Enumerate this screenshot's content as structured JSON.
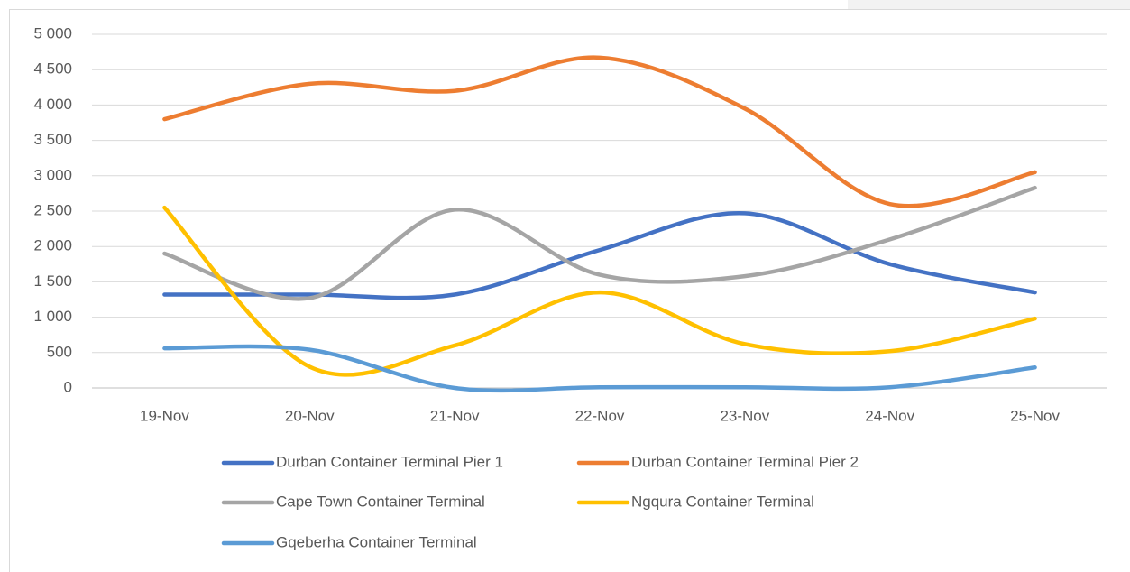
{
  "chart_data": {
    "type": "line",
    "smooth": true,
    "categories": [
      "19-Nov",
      "20-Nov",
      "21-Nov",
      "22-Nov",
      "23-Nov",
      "24-Nov",
      "25-Nov"
    ],
    "series": [
      {
        "name": "Durban Container Terminal Pier 1",
        "color": "#4472c4",
        "values": [
          1320,
          1320,
          1320,
          1950,
          2470,
          1750,
          1350
        ]
      },
      {
        "name": "Durban Container Terminal Pier 2",
        "color": "#ed7d31",
        "values": [
          3800,
          4300,
          4200,
          4670,
          3950,
          2600,
          3050
        ]
      },
      {
        "name": "Cape Town Container Terminal",
        "color": "#a5a5a5",
        "values": [
          1900,
          1270,
          2520,
          1600,
          1580,
          2100,
          2830
        ]
      },
      {
        "name": "Ngqura Container Terminal",
        "color": "#ffc000",
        "values": [
          2550,
          300,
          600,
          1350,
          620,
          520,
          980
        ]
      },
      {
        "name": "Gqeberha Container Terminal",
        "color": "#5b9bd5",
        "values": [
          560,
          540,
          0,
          10,
          10,
          10,
          290
        ]
      }
    ],
    "ylim": [
      0,
      5000
    ],
    "yticks": [
      0,
      500,
      {
        "value": 1000,
        "label": "1 000"
      },
      {
        "value": 1500,
        "label": "1 500"
      },
      {
        "value": 2000,
        "label": "2 000"
      },
      {
        "value": 2500,
        "label": "2 500"
      },
      {
        "value": 3000,
        "label": "3 000"
      },
      {
        "value": 3500,
        "label": "3 500"
      },
      {
        "value": 4000,
        "label": "4 000"
      },
      {
        "value": 4500,
        "label": "4 500"
      },
      {
        "value": 5000,
        "label": "5 000"
      }
    ],
    "grid": true,
    "legend": "bottom"
  }
}
